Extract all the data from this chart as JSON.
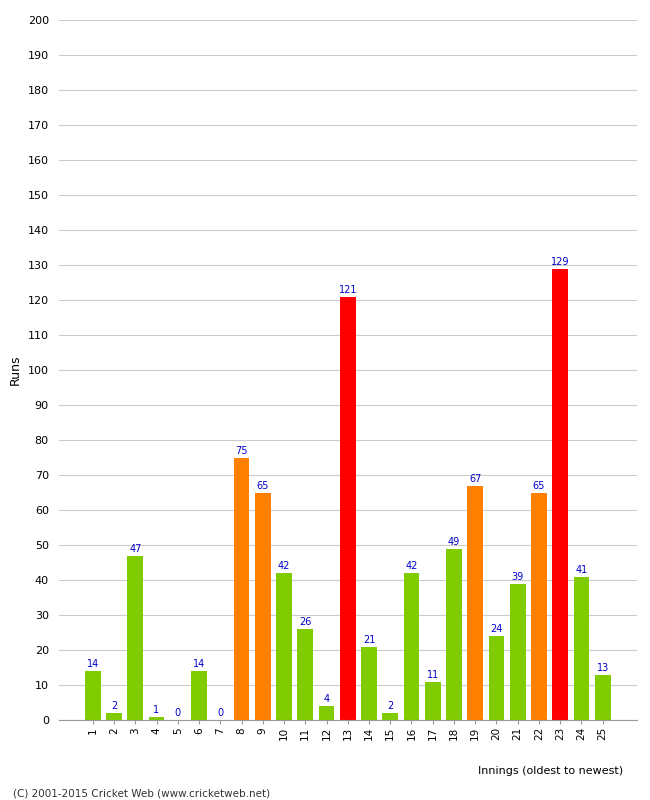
{
  "xlabel": "Innings (oldest to newest)",
  "ylabel": "Runs",
  "categories": [
    1,
    2,
    3,
    4,
    5,
    6,
    7,
    8,
    9,
    10,
    11,
    12,
    13,
    14,
    15,
    16,
    17,
    18,
    19,
    20,
    21,
    22,
    23,
    24,
    25
  ],
  "values": [
    14,
    2,
    47,
    1,
    0,
    14,
    0,
    75,
    65,
    42,
    26,
    4,
    121,
    21,
    2,
    42,
    11,
    49,
    67,
    24,
    39,
    65,
    129,
    41,
    13
  ],
  "colors": [
    "#80cc00",
    "#80cc00",
    "#80cc00",
    "#80cc00",
    "#80cc00",
    "#80cc00",
    "#80cc00",
    "#ff8000",
    "#ff8000",
    "#80cc00",
    "#80cc00",
    "#80cc00",
    "#ff0000",
    "#80cc00",
    "#80cc00",
    "#80cc00",
    "#80cc00",
    "#80cc00",
    "#ff8000",
    "#80cc00",
    "#80cc00",
    "#ff8000",
    "#ff0000",
    "#80cc00",
    "#80cc00"
  ],
  "ylim": [
    0,
    200
  ],
  "yticks": [
    0,
    10,
    20,
    30,
    40,
    50,
    60,
    70,
    80,
    90,
    100,
    110,
    120,
    130,
    140,
    150,
    160,
    170,
    180,
    190,
    200
  ],
  "bg_color": "#ffffff",
  "grid_color": "#cccccc",
  "label_color": "#0000cc",
  "footer": "(C) 2001-2015 Cricket Web (www.cricketweb.net)",
  "bar_width": 0.75
}
